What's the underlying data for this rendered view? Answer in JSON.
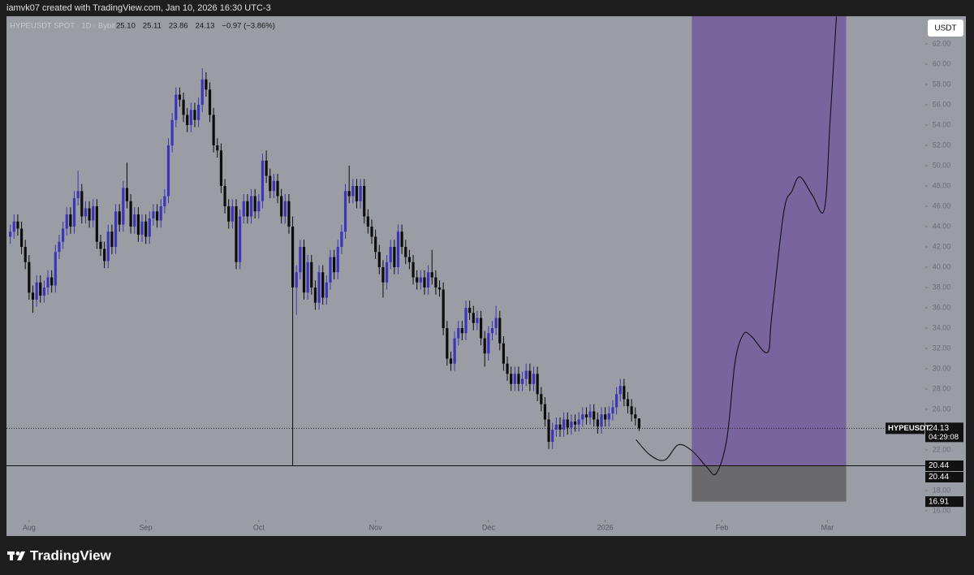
{
  "chart_data": {
    "type": "candlestick",
    "attribution": "iamvk07 created with TradingView.com, Jan 10, 2026 16:30 UTC-3",
    "symbol": "HYPEUSDT SPOT · 1D · Bybit",
    "legend_values": [
      "25.10",
      "25.11",
      "23.86",
      "24.13",
      "−0.97 (−3.86%)"
    ],
    "currency": "USDT",
    "brand": "TradingView",
    "up_color": "#3d35b8",
    "down_color": "#0d0d0d",
    "xlim": [
      -1,
      243
    ],
    "xticks": [
      {
        "value": 5,
        "label": "Aug"
      },
      {
        "value": 36,
        "label": "Sep"
      },
      {
        "value": 66,
        "label": "Oct"
      },
      {
        "value": 97,
        "label": "Nov"
      },
      {
        "value": 127,
        "label": "Dec"
      },
      {
        "value": 158,
        "label": "2026"
      },
      {
        "value": 189,
        "label": "Feb"
      },
      {
        "value": 217,
        "label": "Mar"
      }
    ],
    "ylim": [
      15.12,
      64.72
    ],
    "yticks": [
      {
        "value": 16,
        "label": "16.00"
      },
      {
        "value": 18,
        "label": "18.00"
      },
      {
        "value": 20,
        "label": "20.00"
      },
      {
        "value": 22,
        "label": "22.00"
      },
      {
        "value": 24,
        "label": "24.00"
      },
      {
        "value": 26,
        "label": "26.00"
      },
      {
        "value": 28,
        "label": "28.00"
      },
      {
        "value": 30,
        "label": "30.00"
      },
      {
        "value": 32,
        "label": "32.00"
      },
      {
        "value": 34,
        "label": "34.00"
      },
      {
        "value": 36,
        "label": "36.00"
      },
      {
        "value": 38,
        "label": "38.00"
      },
      {
        "value": 40,
        "label": "40.00"
      },
      {
        "value": 42,
        "label": "42.00"
      },
      {
        "value": 44,
        "label": "44.00"
      },
      {
        "value": 46,
        "label": "46.00"
      },
      {
        "value": 48,
        "label": "48.00"
      },
      {
        "value": 50,
        "label": "50.00"
      },
      {
        "value": 52,
        "label": "52.00"
      },
      {
        "value": 54,
        "label": "54.00"
      },
      {
        "value": 56,
        "label": "56.00"
      },
      {
        "value": 58,
        "label": "58.00"
      },
      {
        "value": 60,
        "label": "60.00"
      },
      {
        "value": 62,
        "label": "62.00"
      }
    ],
    "open": [
      43.0,
      43.5,
      44.5,
      43.8,
      42.0,
      40.5,
      37.5,
      36.8,
      38.5,
      37.2,
      38.0,
      39.0,
      38.2,
      41.5,
      42.5,
      43.8,
      45.2,
      44.0,
      46.8,
      47.5,
      45.0,
      45.8,
      44.6,
      46.0,
      42.5,
      41.8,
      40.6,
      43.5,
      42.0,
      45.5,
      44.2,
      47.8,
      46.5,
      44.0,
      45.2,
      43.2,
      44.5,
      43.0,
      44.8,
      45.5,
      44.6,
      46.0,
      47.0,
      52.0,
      54.5,
      57.0,
      56.5,
      55.0,
      54.0,
      55.5,
      54.5,
      56.0,
      58.5,
      57.5,
      55.0,
      52.0,
      51.5,
      48.0,
      46.0,
      44.5,
      46.0,
      40.5,
      45.0,
      46.5,
      45.0,
      47.0,
      45.5,
      46.5,
      50.5,
      49.0,
      47.5,
      48.5,
      47.0,
      45.0,
      46.5,
      44.0,
      38.0,
      39.5,
      42.0,
      37.5,
      40.5,
      38.0,
      36.5,
      39.5,
      37.0,
      38.5,
      41.0,
      39.5,
      42.0,
      43.5,
      47.5,
      47.0,
      48.0,
      46.5,
      48.0,
      45.0,
      44.0,
      43.0,
      41.5,
      40.0,
      38.5,
      40.5,
      42.0,
      40.0,
      43.5,
      42.0,
      41.0,
      40.5,
      39.0,
      38.5,
      39.0,
      38.0,
      39.5,
      39.0,
      38.0,
      37.8,
      34.0,
      31.0,
      30.5,
      33.0,
      34.0,
      33.5,
      36.0,
      35.5,
      34.5,
      35.0,
      33.0,
      31.5,
      33.5,
      34.0,
      35.0,
      32.5,
      30.5,
      29.5,
      28.5,
      29.5,
      28.5,
      29.0,
      29.8,
      28.5,
      29.5,
      27.5,
      26.5,
      25.0,
      22.8,
      24.0,
      24.5,
      24.0,
      25.0,
      24.2,
      24.8,
      24.5,
      25.0,
      25.5,
      25.2,
      25.8,
      25.0,
      24.3,
      25.5,
      25.0,
      25.6,
      26.2,
      27.5,
      28.3,
      27.0,
      26.3,
      25.5,
      25.1
    ],
    "high": [
      44.2,
      45.2,
      45.2,
      44.5,
      42.7,
      41.2,
      38.2,
      39.2,
      39.2,
      38.7,
      39.7,
      39.7,
      42.2,
      43.2,
      44.5,
      45.9,
      45.9,
      47.5,
      49.5,
      48.2,
      46.5,
      46.5,
      46.7,
      46.7,
      43.2,
      42.5,
      44.2,
      44.2,
      46.2,
      46.2,
      48.5,
      50.3,
      47.2,
      45.9,
      45.9,
      45.2,
      45.2,
      45.5,
      46.2,
      46.2,
      46.7,
      47.7,
      52.7,
      55.2,
      57.7,
      57.7,
      57.2,
      55.7,
      56.2,
      56.2,
      56.7,
      59.6,
      59.2,
      58.2,
      55.7,
      52.7,
      52.2,
      48.7,
      46.7,
      46.7,
      46.7,
      45.7,
      47.2,
      47.2,
      47.7,
      47.7,
      47.2,
      51.2,
      51.5,
      49.7,
      49.2,
      49.2,
      47.7,
      47.2,
      47.2,
      45.0,
      40.2,
      42.7,
      42.7,
      41.2,
      41.2,
      38.7,
      40.2,
      40.2,
      39.2,
      41.7,
      41.7,
      42.7,
      44.2,
      48.2,
      50.0,
      48.7,
      48.7,
      48.7,
      48.7,
      45.7,
      44.7,
      43.7,
      42.2,
      40.7,
      41.2,
      42.7,
      42.7,
      44.2,
      44.2,
      42.7,
      41.7,
      41.2,
      39.7,
      39.7,
      39.7,
      40.2,
      41.7,
      39.7,
      38.7,
      38.5,
      34.7,
      31.7,
      33.7,
      34.7,
      34.7,
      36.7,
      36.7,
      36.2,
      35.7,
      35.7,
      33.7,
      34.2,
      34.7,
      36.2,
      35.7,
      33.2,
      31.2,
      30.2,
      30.2,
      30.2,
      29.7,
      30.5,
      30.5,
      30.2,
      30.2,
      28.2,
      27.2,
      25.7,
      24.7,
      25.2,
      25.2,
      25.7,
      25.7,
      25.5,
      25.5,
      25.7,
      26.2,
      26.2,
      26.5,
      26.5,
      25.7,
      26.2,
      26.2,
      26.3,
      26.9,
      28.2,
      29.0,
      29.0,
      27.7,
      27.0,
      26.2,
      25.11
    ],
    "low": [
      42.3,
      42.8,
      43.1,
      41.3,
      39.8,
      36.8,
      35.5,
      36.1,
      36.5,
      36.5,
      37.3,
      37.5,
      37.5,
      40.8,
      41.8,
      43.1,
      43.3,
      43.3,
      46.1,
      44.3,
      44.3,
      43.9,
      43.9,
      41.8,
      41.1,
      39.9,
      39.9,
      41.3,
      41.3,
      43.5,
      43.5,
      45.8,
      43.3,
      43.3,
      42.5,
      42.5,
      42.3,
      42.3,
      44.1,
      43.9,
      43.9,
      45.3,
      46.3,
      51.3,
      53.8,
      55.8,
      54.3,
      53.3,
      53.3,
      53.8,
      53.8,
      55.3,
      56.8,
      54.3,
      51.3,
      50.8,
      47.3,
      45.3,
      43.8,
      43.8,
      39.8,
      39.8,
      44.3,
      44.3,
      44.3,
      44.8,
      44.8,
      45.8,
      48.3,
      46.8,
      46.8,
      46.3,
      44.3,
      44.3,
      43.3,
      20.44,
      35.3,
      38.8,
      36.8,
      36.8,
      37.3,
      35.8,
      35.8,
      36.3,
      36.3,
      37.8,
      38.8,
      38.8,
      41.3,
      42.8,
      46.3,
      46.3,
      45.8,
      45.8,
      44.3,
      43.3,
      42.3,
      40.8,
      39.3,
      37.0,
      37.8,
      39.8,
      39.3,
      39.3,
      41.3,
      40.3,
      39.8,
      38.3,
      37.8,
      37.8,
      37.3,
      37.3,
      38.3,
      37.3,
      37.1,
      33.3,
      30.3,
      29.8,
      29.8,
      32.3,
      32.8,
      32.8,
      34.8,
      33.8,
      33.8,
      32.3,
      30.2,
      30.8,
      32.8,
      33.3,
      31.8,
      29.8,
      28.8,
      27.8,
      27.8,
      27.8,
      27.8,
      28.3,
      27.8,
      27.8,
      26.8,
      25.8,
      24.3,
      22.1,
      22.1,
      23.3,
      23.3,
      23.3,
      23.5,
      23.5,
      23.8,
      23.8,
      24.3,
      24.5,
      24.5,
      24.3,
      23.6,
      23.6,
      24.3,
      24.3,
      24.9,
      25.5,
      26.8,
      26.3,
      25.6,
      24.8,
      24.4,
      23.86
    ],
    "close": [
      43.5,
      44.5,
      43.8,
      42.0,
      40.5,
      37.5,
      36.8,
      38.5,
      37.2,
      38.0,
      39.0,
      38.2,
      41.5,
      42.5,
      43.8,
      45.2,
      44.0,
      46.8,
      47.5,
      45.0,
      45.8,
      44.6,
      46.0,
      42.5,
      41.8,
      40.6,
      43.5,
      42.0,
      45.5,
      44.2,
      47.8,
      46.5,
      44.0,
      45.2,
      43.2,
      44.5,
      43.0,
      44.8,
      45.5,
      44.6,
      46.0,
      47.0,
      52.0,
      54.5,
      57.0,
      56.5,
      55.0,
      54.0,
      55.5,
      54.5,
      56.0,
      58.5,
      57.5,
      55.0,
      52.0,
      51.5,
      48.0,
      46.0,
      44.5,
      46.0,
      40.5,
      45.0,
      46.5,
      45.0,
      47.0,
      45.5,
      46.5,
      50.5,
      49.0,
      47.5,
      48.5,
      47.0,
      45.0,
      46.5,
      44.0,
      38.0,
      39.5,
      42.0,
      37.5,
      40.5,
      38.0,
      36.5,
      39.5,
      37.0,
      38.5,
      41.0,
      39.5,
      42.0,
      43.5,
      47.5,
      47.0,
      48.0,
      46.5,
      48.0,
      45.0,
      44.0,
      43.0,
      41.5,
      40.0,
      38.5,
      40.5,
      42.0,
      40.0,
      43.5,
      42.0,
      41.0,
      40.5,
      39.0,
      38.5,
      39.0,
      38.0,
      39.5,
      39.0,
      38.0,
      37.8,
      34.0,
      31.0,
      30.5,
      33.0,
      34.0,
      33.5,
      36.0,
      35.5,
      34.5,
      35.0,
      33.0,
      31.5,
      33.5,
      34.0,
      35.0,
      32.5,
      30.5,
      29.5,
      28.5,
      29.5,
      28.5,
      29.0,
      29.8,
      28.5,
      29.5,
      27.5,
      26.5,
      25.0,
      22.8,
      24.0,
      24.5,
      24.0,
      25.0,
      24.2,
      24.8,
      24.5,
      25.0,
      25.5,
      25.2,
      25.8,
      25.0,
      24.3,
      25.5,
      25.0,
      25.6,
      26.2,
      27.5,
      28.3,
      27.0,
      26.3,
      25.5,
      25.1,
      24.13
    ],
    "projection": {
      "color": "#111111",
      "x": [
        166.2,
        169.9,
        173.8,
        177.4,
        181.1,
        185.0,
        187.5,
        190.3,
        192.5,
        194.7,
        196.8,
        201.1,
        202.2,
        205.4,
        207.6,
        209.7,
        213.0,
        216.2,
        217.7,
        219.4
      ],
      "values": [
        23.0,
        21.5,
        21.0,
        22.5,
        21.9,
        20.3,
        19.7,
        23.1,
        30.7,
        33.4,
        33.2,
        31.6,
        35.1,
        45.4,
        47.5,
        48.9,
        47.1,
        45.7,
        54.3,
        64.7
      ]
    },
    "target_zone": {
      "start": 181,
      "end": 222,
      "low": 20.44,
      "high": 64.72,
      "color": "#7a649e"
    },
    "stop_zone": {
      "start": 181,
      "end": 222,
      "low": 16.91,
      "high": 20.44,
      "color": "#6a6a6d"
    },
    "hline": 20.44,
    "price_labels": [
      {
        "name": "HYPEUSDT",
        "value": 24.13,
        "countdown": "04:29:08"
      },
      {
        "value": 20.44
      },
      {
        "value": 20.44
      },
      {
        "value": 16.91
      }
    ]
  }
}
